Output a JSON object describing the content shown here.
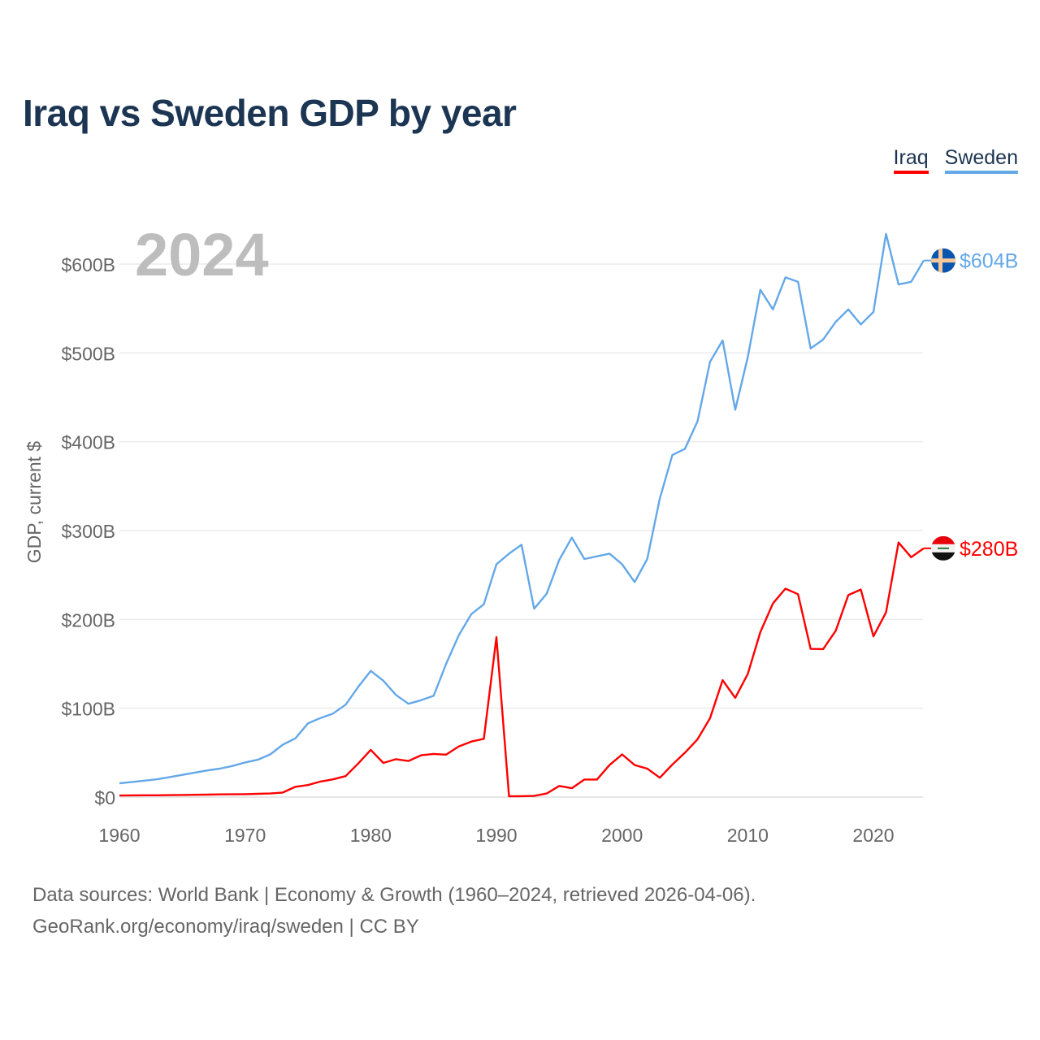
{
  "chart_data": {
    "type": "line",
    "title": "Iraq vs Sweden GDP by year",
    "xlabel": "",
    "ylabel": "GDP, current $",
    "year_label": "2024",
    "xlim": [
      1960,
      2024
    ],
    "ylim": [
      0,
      650
    ],
    "x_ticks": [
      1960,
      1970,
      1980,
      1990,
      2000,
      2010,
      2020
    ],
    "y_ticks": [
      0,
      100,
      200,
      300,
      400,
      500,
      600
    ],
    "y_tick_labels": [
      "$0",
      "$100B",
      "$200B",
      "$300B",
      "$400B",
      "$500B",
      "$600B"
    ],
    "grid": true,
    "legend_placement": "top-right",
    "start_year": 1960,
    "series": [
      {
        "name": "Iraq",
        "color": "#ff0000",
        "end_label": "$280B",
        "flag": "iraq-flag",
        "values": [
          1.7,
          1.9,
          2.0,
          2.0,
          2.2,
          2.4,
          2.6,
          2.7,
          3.0,
          3.1,
          3.3,
          3.7,
          4.0,
          5.1,
          11.5,
          13.5,
          17.5,
          19.9,
          23.6,
          37.8,
          53.1,
          38.4,
          42.6,
          40.6,
          47.0,
          48.6,
          47.7,
          57.0,
          62.5,
          65.6,
          180.0,
          0.8,
          1.0,
          1.3,
          4.0,
          12.5,
          10.0,
          19.8,
          19.8,
          36.0,
          48.0,
          36.0,
          32.0,
          21.8,
          36.6,
          49.9,
          65.0,
          88.8,
          131.6,
          111.7,
          138.5,
          185.7,
          218.0,
          234.6,
          228.4,
          166.8,
          166.6,
          187.2,
          227.4,
          233.6,
          180.9,
          207.9,
          286.6,
          270.0,
          280.0
        ]
      },
      {
        "name": "Sweden",
        "color": "#64a8e8",
        "end_label": "$604B",
        "flag": "sweden-flag",
        "values": [
          15.5,
          17.0,
          18.5,
          20.0,
          22.5,
          25.0,
          27.5,
          30.0,
          32.0,
          35.0,
          39.0,
          42.0,
          48.0,
          59.0,
          66.0,
          83.0,
          89.0,
          94.0,
          104.0,
          124.0,
          142.0,
          131.0,
          115.0,
          105.0,
          109.0,
          114.0,
          150.0,
          182.0,
          206.0,
          217.0,
          262.0,
          274.0,
          284.0,
          212.0,
          229.0,
          267.0,
          292.0,
          268.0,
          271.0,
          274.0,
          262.0,
          242.0,
          268.0,
          336.0,
          385.0,
          392.0,
          423.0,
          490.0,
          514.0,
          436.0,
          495.0,
          571.0,
          549.0,
          585.0,
          580.0,
          505.0,
          515.0,
          535.0,
          549.0,
          532.0,
          546.0,
          634.0,
          577.0,
          580.0,
          604.0
        ]
      }
    ]
  },
  "footer": {
    "line1": "Data sources: World Bank | Economy & Growth (1960–2024, retrieved 2026-04-06).",
    "line2": "GeoRank.org/economy/iraq/sweden | CC BY"
  }
}
